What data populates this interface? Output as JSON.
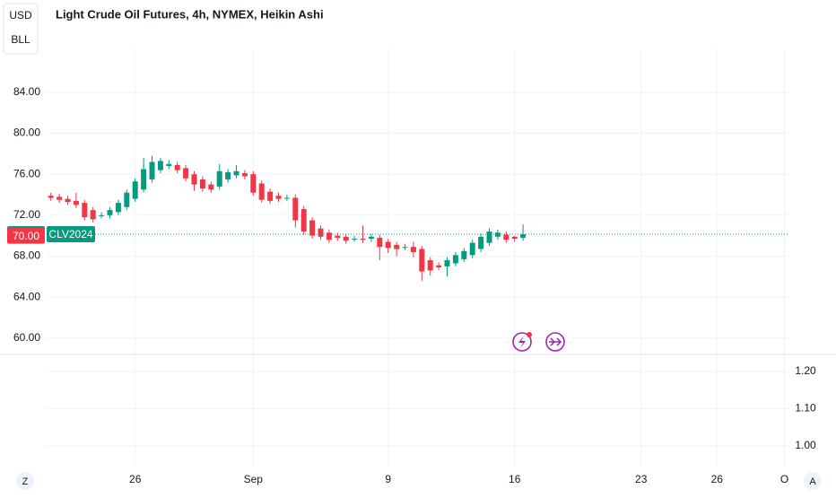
{
  "chart_data": {
    "type": "candlestick",
    "title": "Light Crude Oil Futures, 4h, NYMEX, Heikin Ashi",
    "buttons": [
      "USD",
      "BLL"
    ],
    "corner_buttons": [
      "Z",
      "A"
    ],
    "up_color": "#089981",
    "down_color": "#f23645",
    "ylim": [
      58.4,
      88.2
    ],
    "yticks": [
      {
        "value": 60,
        "label": "60.00"
      },
      {
        "value": 64,
        "label": "64.00"
      },
      {
        "value": 68,
        "label": "68.00"
      },
      {
        "value": 72,
        "label": "72.00"
      },
      {
        "value": 76,
        "label": "76.00"
      },
      {
        "value": 80,
        "label": "80.00"
      },
      {
        "value": 84,
        "label": "84.00"
      }
    ],
    "grid": true,
    "last_price": 70.14,
    "symbol": "CLV2024",
    "other_price": {
      "value": 70,
      "label": "70.00"
    },
    "lower_pane": {
      "ylim": [
        0.944,
        1.246
      ],
      "yticks": [
        {
          "value": 1.0,
          "label": "1.00"
        },
        {
          "value": 1.1,
          "label": "1.10"
        },
        {
          "value": 1.2,
          "label": "1.20"
        }
      ]
    },
    "categories": [
      null,
      null,
      null,
      null,
      null,
      null,
      null,
      null,
      null,
      null,
      "26",
      null,
      null,
      null,
      null,
      null,
      null,
      null,
      null,
      null,
      null,
      null,
      null,
      null,
      "Sep",
      null,
      null,
      null,
      null,
      null,
      null,
      null,
      null,
      null,
      null,
      null,
      null,
      null,
      null,
      null,
      "9",
      null,
      null,
      null,
      null,
      null,
      null,
      null,
      null,
      null,
      null,
      null,
      null,
      null,
      null,
      "16",
      null,
      null,
      null,
      null,
      null,
      null,
      null,
      null,
      null,
      null,
      null,
      null,
      null,
      null,
      "23",
      null,
      null,
      null,
      null,
      null,
      null,
      null,
      null,
      "26",
      null,
      null,
      null,
      null,
      null,
      null,
      null,
      "O"
    ],
    "open": [
      73.9,
      73.8,
      73.6,
      73.4,
      73.2,
      72.5,
      72.0,
      72.0,
      72.3,
      72.8,
      73.6,
      74.5,
      75.5,
      76.4,
      76.8,
      76.9,
      76.6,
      76.0,
      75.5,
      75.0,
      74.8,
      75.5,
      75.9,
      76.1,
      76.0,
      75.1,
      74.3,
      73.9,
      73.7,
      73.7,
      72.6,
      71.5,
      70.7,
      70.3,
      70.0,
      69.9,
      69.7,
      69.7,
      69.7,
      69.8,
      69.4,
      69.1,
      68.9,
      68.9,
      68.7,
      67.6,
      67.1,
      67.0,
      67.3,
      67.7,
      68.1,
      68.7,
      69.3,
      69.9,
      70.1,
      69.9,
      69.8,
      null,
      null,
      null,
      null,
      null,
      null,
      null,
      null,
      null,
      null,
      null,
      null,
      null,
      null,
      null,
      null,
      null,
      null,
      null,
      null,
      null,
      null,
      null,
      null,
      null,
      null,
      null,
      null,
      null,
      null,
      null
    ],
    "high": [
      74.2,
      74.1,
      73.9,
      74.2,
      73.5,
      72.8,
      72.3,
      72.8,
      73.5,
      74.5,
      75.6,
      77.6,
      77.8,
      77.6,
      77.4,
      77.2,
      76.9,
      76.3,
      75.8,
      75.3,
      77.0,
      76.5,
      76.9,
      76.4,
      76.3,
      75.4,
      74.6,
      74.2,
      74.0,
      74.0,
      72.9,
      71.8,
      71.0,
      70.6,
      70.3,
      70.2,
      70.0,
      71.0,
      70.2,
      70.1,
      69.7,
      69.4,
      69.2,
      69.4,
      69.0,
      67.9,
      67.4,
      67.9,
      68.4,
      68.8,
      69.6,
      70.2,
      70.7,
      70.6,
      70.4,
      70.0,
      71.1,
      null,
      null,
      null,
      null,
      null,
      null,
      null,
      null,
      null,
      null,
      null,
      null,
      null,
      null,
      null,
      null,
      null,
      null,
      null,
      null,
      null,
      null,
      null,
      null,
      null,
      null,
      null,
      null,
      null,
      null,
      null
    ],
    "low": [
      73.4,
      73.2,
      73.0,
      72.7,
      71.5,
      71.3,
      71.7,
      71.7,
      72.0,
      72.5,
      73.3,
      74.2,
      75.2,
      76.1,
      76.5,
      76.1,
      75.3,
      74.4,
      74.3,
      74.2,
      74.5,
      75.2,
      75.6,
      75.5,
      73.9,
      73.2,
      73.1,
      73.3,
      73.4,
      70.8,
      70.1,
      69.7,
      69.6,
      69.3,
      69.5,
      69.2,
      69.4,
      69.3,
      69.4,
      67.6,
      68.3,
      68.0,
      68.6,
      67.9,
      65.6,
      66.1,
      66.6,
      66.0,
      67.0,
      67.4,
      67.8,
      68.4,
      69.0,
      69.6,
      69.3,
      69.4,
      69.5,
      null,
      null,
      null,
      null,
      null,
      null,
      null,
      null,
      null,
      null,
      null,
      null,
      null,
      null,
      null,
      null,
      null,
      null,
      null,
      null,
      null,
      null,
      null,
      null,
      null,
      null,
      null,
      null,
      null,
      null,
      null
    ],
    "close": [
      73.7,
      73.5,
      73.3,
      73.0,
      71.8,
      71.6,
      72.0,
      72.5,
      73.2,
      74.2,
      75.3,
      76.5,
      77.2,
      77.3,
      77.0,
      76.4,
      75.6,
      75.0,
      74.6,
      74.5,
      76.3,
      76.2,
      76.3,
      75.8,
      74.2,
      73.5,
      73.4,
      73.6,
      73.7,
      71.5,
      70.4,
      70.0,
      69.9,
      69.6,
      69.8,
      69.5,
      69.7,
      69.6,
      69.9,
      68.9,
      68.8,
      68.7,
      68.9,
      68.4,
      66.5,
      66.6,
      66.9,
      67.6,
      68.1,
      68.5,
      69.3,
      69.9,
      70.4,
      70.3,
      69.6,
      69.7,
      70.14,
      null,
      null,
      null,
      null,
      null,
      null,
      null,
      null,
      null,
      null,
      null,
      null,
      null,
      null,
      null,
      null,
      null,
      null,
      null,
      null,
      null,
      null,
      null,
      null,
      null,
      null,
      null,
      null,
      null,
      null,
      null
    ]
  }
}
